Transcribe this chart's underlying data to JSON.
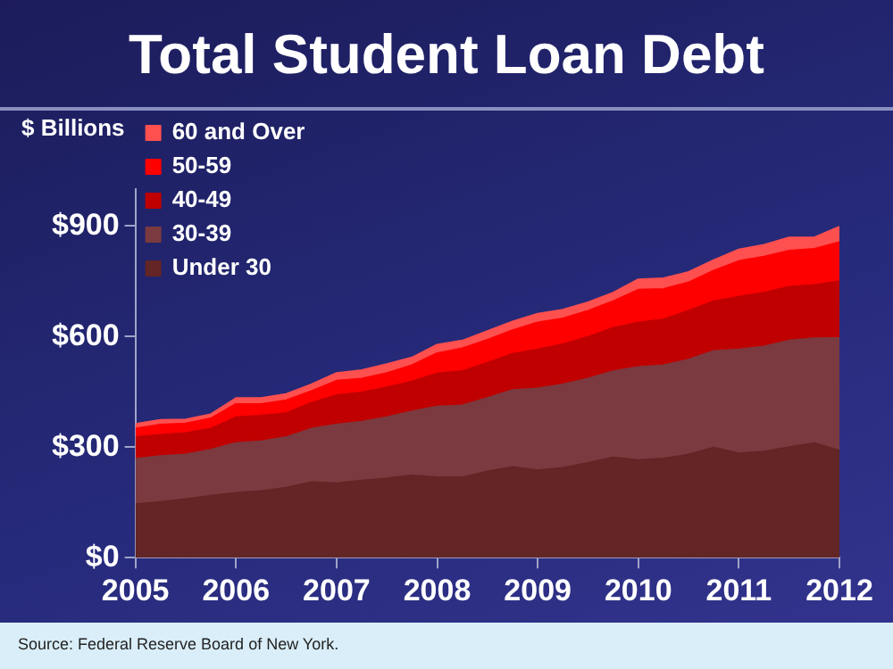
{
  "chart_data": {
    "type": "area",
    "title": "Total Student Loan Debt",
    "ylabel": "$ Billions",
    "stacked": true,
    "legend": "top left",
    "x": [
      2005,
      2005.25,
      2005.5,
      2005.75,
      2006,
      2006.25,
      2006.5,
      2006.75,
      2007,
      2007.25,
      2007.5,
      2007.75,
      2008,
      2008.25,
      2008.5,
      2008.75,
      2009,
      2009.25,
      2009.5,
      2009.75,
      2010,
      2010.25,
      2010.5,
      2010.75,
      2011,
      2011.25,
      2011.5,
      2011.75,
      2012
    ],
    "xlim": [
      2005,
      2012
    ],
    "xticks": [
      2005,
      2006,
      2007,
      2008,
      2009,
      2010,
      2011,
      2012
    ],
    "ylim": [
      0,
      1000
    ],
    "yticks": [
      {
        "value": 0,
        "label": "$0"
      },
      {
        "value": 300,
        "label": "$300"
      },
      {
        "value": 600,
        "label": "$600"
      },
      {
        "value": 900,
        "label": "$900"
      }
    ],
    "series": [
      {
        "name": "Under 30",
        "color": "#632525",
        "values": [
          145,
          151,
          159,
          168,
          176,
          181,
          190,
          205,
          202,
          209,
          215,
          223,
          218,
          218,
          234,
          246,
          237,
          244,
          257,
          272,
          265,
          269,
          280,
          299,
          283,
          288,
          300,
          311,
          291
        ]
      },
      {
        "name": "30-39",
        "color": "#7b3a40",
        "values": [
          123,
          125,
          121,
          125,
          135,
          135,
          137,
          145,
          159,
          160,
          166,
          174,
          192,
          195,
          199,
          209,
          222,
          226,
          229,
          234,
          252,
          253,
          257,
          262,
          282,
          285,
          289,
          284,
          305
        ]
      },
      {
        "name": "40-49",
        "color": "#c00000",
        "values": [
          59,
          57,
          58,
          57,
          70,
          69,
          65,
          70,
          80,
          79,
          81,
          81,
          90,
          93,
          96,
          98,
          106,
          109,
          113,
          117,
          121,
          124,
          133,
          135,
          143,
          146,
          146,
          145,
          154
        ]
      },
      {
        "name": "50-59",
        "color": "#ff0000",
        "values": [
          23,
          28,
          26,
          28,
          36,
          32,
          35,
          32,
          39,
          38,
          39,
          44,
          55,
          62,
          62,
          64,
          73,
          70,
          71,
          73,
          89,
          83,
          77,
          83,
          97,
          98,
          98,
          98,
          106
        ]
      },
      {
        "name": "60 and Over",
        "color": "#ff5050",
        "values": [
          13,
          13,
          11,
          11,
          16,
          16,
          17,
          18,
          21,
          23,
          24,
          21,
          23,
          21,
          24,
          24,
          24,
          24,
          23,
          23,
          28,
          29,
          28,
          28,
          31,
          32,
          36,
          31,
          42
        ]
      }
    ],
    "annotations": [
      "Source: Federal Reserve Board of New York."
    ]
  }
}
